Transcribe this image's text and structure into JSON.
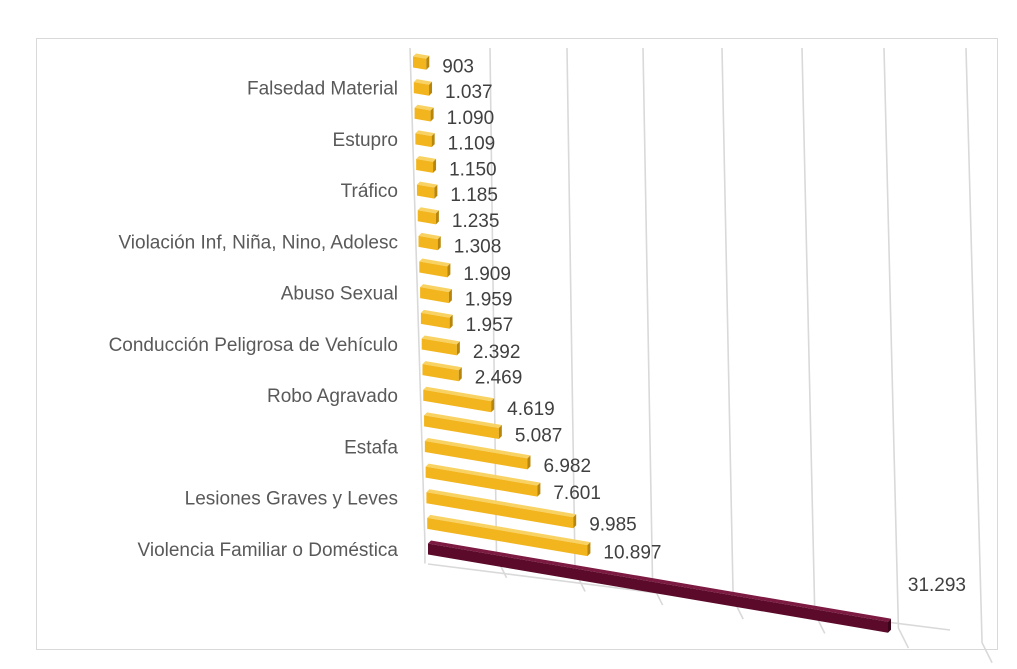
{
  "chart_data": {
    "type": "bar",
    "orientation": "horizontal-3d",
    "categories": [
      "",
      "Falsedad Material",
      "",
      "Estupro",
      "",
      "Tráfico",
      "",
      "Violación Inf, Niña, Nino, Adolesc",
      "",
      "Abuso Sexual",
      "",
      "Conducción Peligrosa de Vehículo",
      "",
      "Robo Agravado",
      "",
      "Estafa",
      "",
      "Lesiones Graves y Leves",
      "",
      "Violencia Familiar o Doméstica"
    ],
    "values": [
      903,
      1037,
      1090,
      1109,
      1150,
      1185,
      1235,
      1308,
      1909,
      1959,
      1957,
      2392,
      2469,
      4619,
      5087,
      6982,
      7601,
      9985,
      10897,
      31293
    ],
    "value_labels": [
      "903",
      "1.037",
      "1.090",
      "1.109",
      "1.150",
      "1.185",
      "1.235",
      "1.308",
      "1.909",
      "1.959",
      "1.957",
      "2.392",
      "2.469",
      "4.619",
      "5.087",
      "6.982",
      "7.601",
      "9.985",
      "10.897",
      "31.293"
    ],
    "highlight_index": 19,
    "colors": {
      "bar": "#f2b51d",
      "bar_side": "#b8860b",
      "bar_top": "#f9d264",
      "highlight": "#5c0a2a",
      "highlight_side": "#3a0419",
      "highlight_top": "#7c1a42",
      "grid": "#d9d9d9",
      "label": "#595959"
    },
    "grid": true,
    "legend": "none"
  }
}
